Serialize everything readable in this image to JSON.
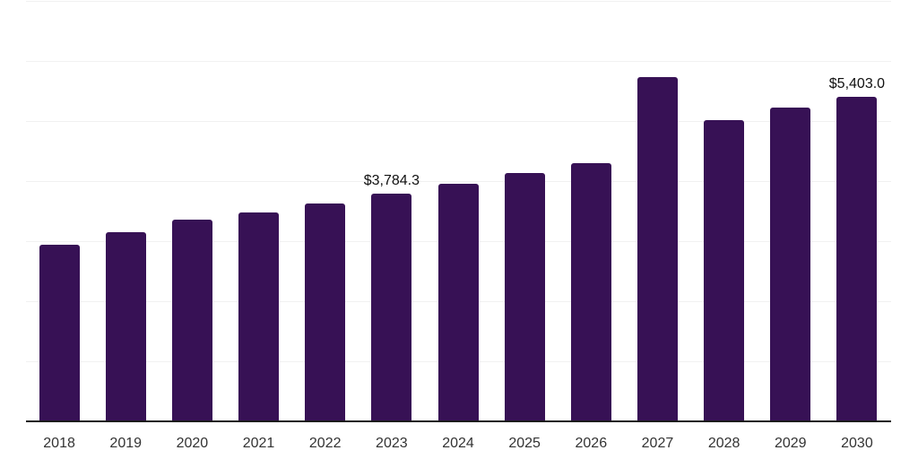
{
  "chart_data": {
    "type": "bar",
    "title": "",
    "xlabel": "",
    "ylabel": "",
    "categories": [
      "2018",
      "2019",
      "2020",
      "2021",
      "2022",
      "2023",
      "2024",
      "2025",
      "2026",
      "2027",
      "2028",
      "2029",
      "2030"
    ],
    "values": [
      2940,
      3155,
      3365,
      3485,
      3625,
      3784.3,
      3955,
      4135,
      4300,
      5730,
      5015,
      5225,
      5403.0
    ],
    "data_labels": {
      "2023": "$3,784.3",
      "2030": "$5,403.0"
    },
    "ylim": [
      0,
      7000
    ],
    "gridline_interval": 1000,
    "grid": "horizontal",
    "legend": "none",
    "bar_color": "#371155",
    "axis_line_color": "#1c1c1c",
    "gridline_color": "#f1f1f1",
    "tick_label_color": "#333333",
    "data_label_color": "#111111"
  }
}
